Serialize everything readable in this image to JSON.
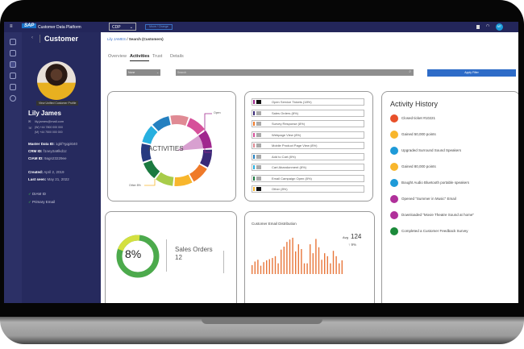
{
  "app": {
    "logo": "SAP",
    "title": "Customer Data Platform",
    "env_select": "CDP",
    "env_button": "Move / Change",
    "avatar_initials": "MT"
  },
  "sidebar": {
    "title": "Customer",
    "back": "‹",
    "badge": "View Unified Customer Profile",
    "name": "Lily James",
    "email": "lily.james@mail.com",
    "phone1": "(W) +44 7800 000 000",
    "phone2": "(M) +44 7500 000 000",
    "ids": [
      {
        "label": "Master Data ID:",
        "value": "1gkf?gqpkt40"
      },
      {
        "label": "CRM ID:",
        "value": "f1ney2a9lkd1z"
      },
      {
        "label": "CIAM ID:",
        "value": "9agn23229ee"
      }
    ],
    "created": {
      "label": "Created:",
      "value": "April 2, 2019"
    },
    "last_seen": {
      "label": "Last seen:",
      "value": "May 21, 2022"
    },
    "checks": [
      "DIAM ID",
      "Primary Email"
    ]
  },
  "breadcrumb": {
    "link": "Lily JAMES",
    "sep": "/",
    "current": "Search (Customers)"
  },
  "tabs": [
    {
      "label": "Overview"
    },
    {
      "label": "Activities",
      "active": true
    },
    {
      "label": "Trust"
    },
    {
      "label": "Details"
    }
  ],
  "filter": {
    "select_value": "None",
    "search_placeholder": "Search",
    "apply": "Apply Filter"
  },
  "activities": {
    "center": "ACTIVITIES",
    "callout_open": "Open",
    "callout_other": "Other 8%",
    "segments": [
      "#e08a94",
      "#d6509a",
      "#a0288e",
      "#3a2a78",
      "#ef7a2a",
      "#f8b62c",
      "#a8cc4a",
      "#1b7a40",
      "#263a80",
      "#27b0e0",
      "#2480c0"
    ]
  },
  "legend": [
    {
      "label": "Open Service Tickets (18%)",
      "color": "#a0288e",
      "swatch": "#111"
    },
    {
      "label": "Sales Orders (8%)",
      "color": "#3a2a78",
      "swatch": "#aaa"
    },
    {
      "label": "Survey Response (8%)",
      "color": "#ef7a2a",
      "swatch": "#aaa"
    },
    {
      "label": "Webpage View (8%)",
      "color": "#d6509a",
      "swatch": "#aaa"
    },
    {
      "label": "Mobile Product Page View (8%)",
      "color": "#e08a94",
      "swatch": "#aaa"
    },
    {
      "label": "Add to Cart (8%)",
      "color": "#2480c0",
      "swatch": "#aaa"
    },
    {
      "label": "Cart Abandonment (8%)",
      "color": "#27b0e0",
      "swatch": "#aaa"
    },
    {
      "label": "Email Campaign Open (8%)",
      "color": "#1b7a40",
      "swatch": "#aaa"
    },
    {
      "label": "Other (8%)",
      "color": "#f8b62c",
      "swatch": "#111"
    }
  ],
  "history": {
    "title": "Activity History",
    "items": [
      {
        "label": "Closed ticket #10221",
        "color": "#e8502a"
      },
      {
        "label": "Gained 50,000 points",
        "color": "#f8b62c"
      },
      {
        "label": "Upgraded Surround Sound Speakers",
        "color": "#1e9ad8"
      },
      {
        "label": "Gained 80,000 points",
        "color": "#f8b62c"
      },
      {
        "label": "Bought Audio Bluetooth portable speakers",
        "color": "#1e9ad8"
      },
      {
        "label": "Opened \"Summer in Music\" Email",
        "color": "#b0309a"
      },
      {
        "label": "Downloaded \"Movie Theatre Sound at home\"",
        "color": "#b0309a"
      },
      {
        "label": "Completed a Customer Feedback Survey",
        "color": "#1b8a3a"
      }
    ]
  },
  "sales": {
    "percent": "8%",
    "percent_value": 8,
    "label": "Sales Orders",
    "count": "12"
  },
  "email_dist": {
    "title": "Customer Email Distribution",
    "avg_label": "Avg",
    "avg": "124",
    "change": "↑ 9%",
    "values": [
      30,
      42,
      48,
      28,
      40,
      46,
      50,
      54,
      60,
      36,
      82,
      92,
      108,
      116,
      122,
      76,
      100,
      84,
      36,
      36,
      100,
      70,
      118,
      90,
      48,
      70,
      60,
      36,
      78,
      60,
      36,
      46
    ]
  }
}
